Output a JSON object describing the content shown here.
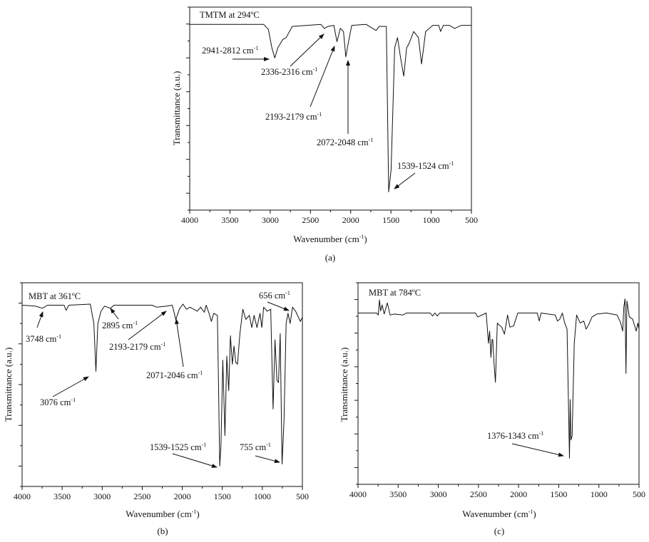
{
  "chart_data": [
    {
      "type": "line",
      "panel_label": "(a)",
      "title": "TMTM at 294ºC",
      "xlabel": {
        "text": "Wavenumber (cm",
        "sup": "-1",
        "tail": ")"
      },
      "ylabel": "Transmittance (a.u.)",
      "xlim": [
        4000,
        500
      ],
      "ylim": [
        0,
        100
      ],
      "xticks": [
        4000,
        3500,
        3000,
        2500,
        2000,
        1500,
        1000,
        500
      ],
      "grid": false,
      "y_tick_labels": false,
      "annotations": [
        {
          "text": "2941-2812 cm",
          "sup": "-1"
        },
        {
          "text": "2336-2316 cm",
          "sup": "-1"
        },
        {
          "text": "2193-2179 cm",
          "sup": "-1"
        },
        {
          "text": "2072-2048 cm",
          "sup": "-1"
        },
        {
          "text": "1539-1524 cm",
          "sup": "-1"
        }
      ],
      "series": [
        {
          "x": [
            4000,
            3082,
            3023,
            2979,
            2943,
            2905,
            2845,
            2801,
            2727,
            2371,
            2327,
            2283,
            2209,
            2170,
            2129,
            2090,
            2060,
            2031,
            1987,
            1809,
            1685,
            1646,
            1557,
            1528,
            1498,
            1453,
            1418,
            1380,
            1341,
            1305,
            1276,
            1217,
            1158,
            1119,
            1069,
            980,
            906,
            883,
            848,
            774,
            709,
            624,
            500
          ],
          "y": [
            91.5,
            91.5,
            89,
            80,
            75,
            80,
            84,
            85,
            90.5,
            91.5,
            89.5,
            90.5,
            91,
            83,
            89.5,
            88,
            75.5,
            82,
            91,
            91.5,
            88.5,
            90.5,
            90.5,
            9,
            20,
            80,
            85,
            75,
            66,
            80,
            82,
            88,
            85,
            72,
            88,
            91,
            91,
            88,
            91,
            91,
            89.5,
            91,
            91
          ]
        }
      ]
    },
    {
      "type": "line",
      "panel_label": "(b)",
      "title": "MBT at 361ºC",
      "xlabel": {
        "text": "Wavenumber (cm",
        "sup": "-1",
        "tail": ")"
      },
      "ylabel": "Transmittance (a.u.)",
      "xlim": [
        4000,
        500
      ],
      "ylim": [
        0,
        100
      ],
      "xticks": [
        4000,
        3500,
        3000,
        2500,
        2000,
        1500,
        1000,
        500
      ],
      "grid": false,
      "y_tick_labels": false,
      "annotations": [
        {
          "text": "3748 cm",
          "sup": "-1"
        },
        {
          "text": "3076 cm",
          "sup": "-1"
        },
        {
          "text": "2895 cm",
          "sup": "-1"
        },
        {
          "text": "2193-2179 cm",
          "sup": "-1"
        },
        {
          "text": "2071-2046 cm",
          "sup": "-1"
        },
        {
          "text": "1539-1525 cm",
          "sup": "-1"
        },
        {
          "text": "755 cm",
          "sup": "-1"
        },
        {
          "text": "656 cm",
          "sup": "-1"
        }
      ],
      "series": [
        {
          "x": [
            4000,
            3831,
            3748,
            3683,
            3475,
            3451,
            3416,
            3149,
            3104,
            3078,
            3054,
            3015,
            2971,
            2897,
            2852,
            2378,
            2318,
            2200,
            2125,
            2081,
            2036,
            1992,
            1947,
            1903,
            1814,
            1770,
            1725,
            1701,
            1666,
            1636,
            1607,
            1562,
            1547,
            1532,
            1517,
            1494,
            1467,
            1444,
            1420,
            1399,
            1375,
            1354,
            1333,
            1310,
            1280,
            1244,
            1206,
            1162,
            1132,
            1103,
            1067,
            1029,
            1007,
            984,
            939,
            895,
            866,
            842,
            818,
            798,
            777,
            754,
            730,
            703,
            680,
            653,
            623,
            585,
            526,
            500
          ],
          "y": [
            89,
            88.5,
            87.5,
            89,
            89,
            86.5,
            89,
            89.5,
            80,
            56.5,
            80,
            86,
            88.5,
            87.5,
            89,
            89,
            88,
            88.5,
            89,
            82,
            87,
            89.5,
            87,
            88,
            86,
            88,
            85.5,
            89,
            85,
            81,
            85,
            84,
            50,
            10,
            20,
            62,
            25,
            64,
            47,
            74,
            60,
            69,
            61,
            60,
            75,
            87,
            82,
            84,
            78,
            84,
            78,
            85,
            78,
            88,
            86,
            87,
            38,
            72,
            52,
            51,
            75,
            11,
            32,
            80,
            85,
            80,
            88,
            86,
            81,
            83
          ]
        }
      ]
    },
    {
      "type": "line",
      "panel_label": "(c)",
      "title": "MBT at 784ºC",
      "xlabel": {
        "text": "Wavenumber (cm",
        "sup": "-1",
        "tail": ")"
      },
      "ylabel": "Transmittance (a.u.)",
      "xlim": [
        4000,
        500
      ],
      "ylim": [
        0,
        100
      ],
      "xticks": [
        4000,
        3500,
        3000,
        2500,
        2000,
        1500,
        1000,
        500
      ],
      "grid": false,
      "y_tick_labels": false,
      "annotations": [
        {
          "text": "1376-1343 cm",
          "sup": "-1"
        }
      ],
      "series": [
        {
          "x": [
            4000,
            3769,
            3748,
            3733,
            3718,
            3700,
            3674,
            3635,
            3600,
            3546,
            3442,
            3398,
            3101,
            3072,
            3042,
            3012,
            2983,
            2538,
            2508,
            2404,
            2389,
            2375,
            2360,
            2345,
            2330,
            2321,
            2306,
            2288,
            2265,
            2241,
            2211,
            2176,
            2137,
            2108,
            2063,
            2010,
            1767,
            1743,
            1720,
            1544,
            1515,
            1485,
            1456,
            1426,
            1396,
            1381,
            1366,
            1357,
            1348,
            1333,
            1307,
            1277,
            1233,
            1188,
            1159,
            1129,
            1085,
            1025,
            906,
            773,
            727,
            703,
            689,
            674,
            663,
            651,
            621,
            580,
            535,
            515,
            500
          ],
          "y": [
            85,
            85,
            84,
            91.5,
            86,
            89,
            84.5,
            90,
            84,
            84.5,
            84,
            85,
            85,
            83.5,
            85,
            83.5,
            85,
            85,
            83,
            85,
            77,
            70,
            76,
            63,
            72,
            71.5,
            60,
            50.6,
            80,
            79,
            78,
            74.5,
            84,
            78,
            78.5,
            85,
            85,
            81,
            85,
            84,
            81,
            82,
            85,
            80,
            77,
            45,
            13,
            42,
            22,
            24,
            70,
            84,
            80,
            81,
            77,
            79,
            83,
            84.5,
            85,
            84,
            80,
            76,
            88,
            92,
            55,
            91,
            83,
            82,
            76,
            80,
            77
          ]
        }
      ]
    }
  ]
}
